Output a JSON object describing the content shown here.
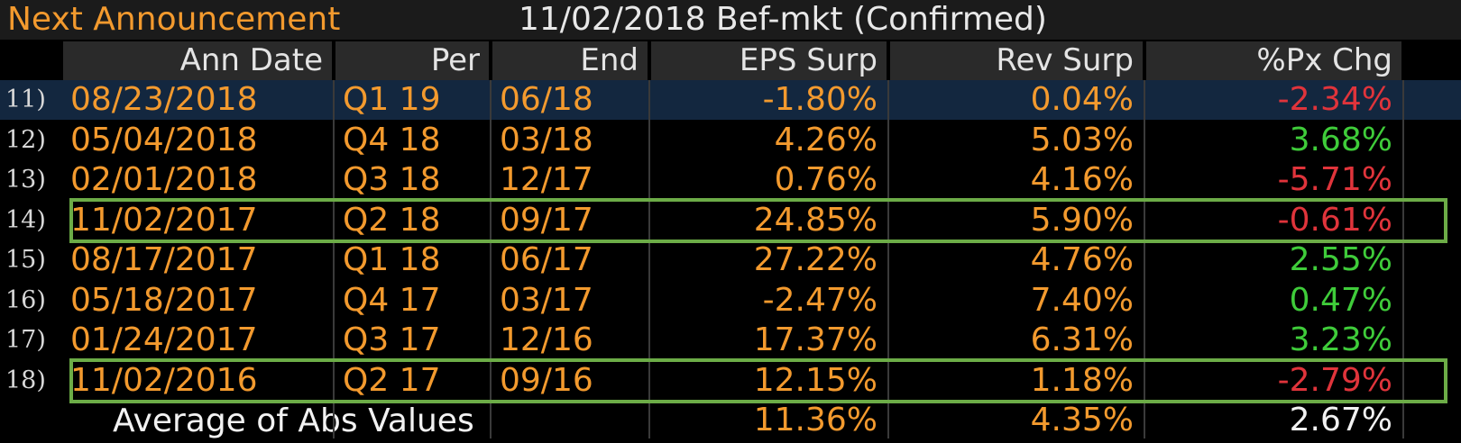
{
  "title": {
    "label": "Next Announcement",
    "value": "11/02/2018  Bef-mkt  (Confirmed)"
  },
  "columns": [
    "Ann Date",
    "Per",
    "End",
    "EPS Surp",
    "Rev Surp",
    "%Px Chg"
  ],
  "rows": [
    {
      "idx": "11)",
      "ann_date": "08/23/2018",
      "per": "Q1 19",
      "end": "06/18",
      "eps_surp": "-1.80%",
      "rev_surp": "0.04%",
      "px_chg": "-2.34%",
      "px_sign": "neg",
      "selected": true,
      "highlighted": false
    },
    {
      "idx": "12)",
      "ann_date": "05/04/2018",
      "per": "Q4 18",
      "end": "03/18",
      "eps_surp": "4.26%",
      "rev_surp": "5.03%",
      "px_chg": "3.68%",
      "px_sign": "pos",
      "selected": false,
      "highlighted": false
    },
    {
      "idx": "13)",
      "ann_date": "02/01/2018",
      "per": "Q3 18",
      "end": "12/17",
      "eps_surp": "0.76%",
      "rev_surp": "4.16%",
      "px_chg": "-5.71%",
      "px_sign": "neg",
      "selected": false,
      "highlighted": false
    },
    {
      "idx": "14)",
      "ann_date": "11/02/2017",
      "per": "Q2 18",
      "end": "09/17",
      "eps_surp": "24.85%",
      "rev_surp": "5.90%",
      "px_chg": "-0.61%",
      "px_sign": "neg",
      "selected": false,
      "highlighted": true
    },
    {
      "idx": "15)",
      "ann_date": "08/17/2017",
      "per": "Q1 18",
      "end": "06/17",
      "eps_surp": "27.22%",
      "rev_surp": "4.76%",
      "px_chg": "2.55%",
      "px_sign": "pos",
      "selected": false,
      "highlighted": false
    },
    {
      "idx": "16)",
      "ann_date": "05/18/2017",
      "per": "Q4 17",
      "end": "03/17",
      "eps_surp": "-2.47%",
      "rev_surp": "7.40%",
      "px_chg": "0.47%",
      "px_sign": "pos",
      "selected": false,
      "highlighted": false
    },
    {
      "idx": "17)",
      "ann_date": "01/24/2017",
      "per": "Q3 17",
      "end": "12/16",
      "eps_surp": "17.37%",
      "rev_surp": "6.31%",
      "px_chg": "3.23%",
      "px_sign": "pos",
      "selected": false,
      "highlighted": false
    },
    {
      "idx": "18)",
      "ann_date": "11/02/2016",
      "per": "Q2 17",
      "end": "09/16",
      "eps_surp": "12.15%",
      "rev_surp": "1.18%",
      "px_chg": "-2.79%",
      "px_sign": "neg",
      "selected": false,
      "highlighted": true
    }
  ],
  "footer": {
    "label": "Average of Abs Values",
    "eps_surp": "11.36%",
    "rev_surp": "4.35%",
    "px_chg": "2.67%"
  },
  "colors": {
    "label_orange": "#f39a2e",
    "negative_red": "#e0343b",
    "positive_green": "#3fcc3a",
    "highlight_box_green": "#6cac47",
    "selected_row_blue": "#13273f",
    "header_grey": "#2a2a2a"
  }
}
